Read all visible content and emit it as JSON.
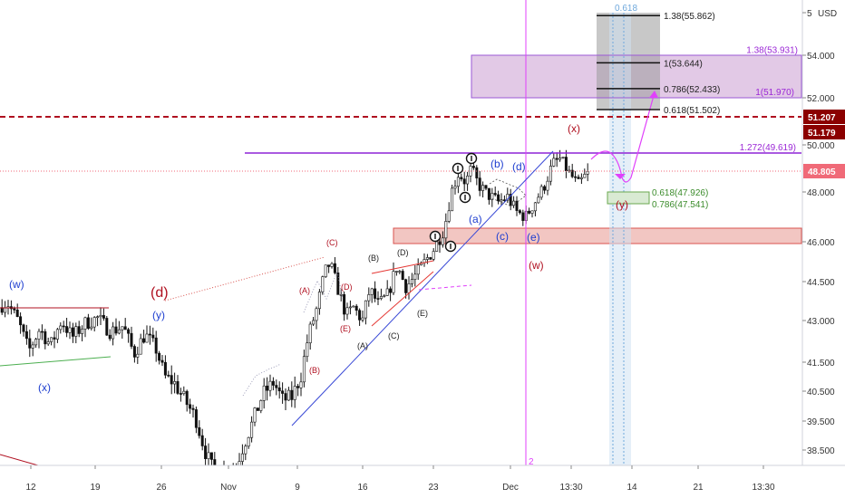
{
  "chart_data": {
    "type": "candlestick",
    "currency": "USD",
    "y_axis_labels": [
      "5",
      "54.000",
      "52.000",
      "50.000",
      "48.000",
      "46.000",
      "44.500",
      "43.000",
      "41.500",
      "40.500",
      "39.500",
      "38.500"
    ],
    "x_axis_labels": [
      "12",
      "19",
      "26",
      "Nov",
      "9",
      "16",
      "23",
      "Dec",
      "13:30",
      "14",
      "21",
      "13:30"
    ],
    "price_tags": [
      {
        "label": "51.207",
        "value": 51.207,
        "color": "#8b0000"
      },
      {
        "label": "51.179",
        "value": 51.179,
        "color": "#8b0000"
      },
      {
        "label": "48.805",
        "value": 48.805,
        "color": "#f06a78"
      }
    ],
    "fib_levels": [
      {
        "label": "1.38(55.862)",
        "value": 55.862
      },
      {
        "label": "1(53.644)",
        "value": 53.644
      },
      {
        "label": "0.786(52.433)",
        "value": 52.433
      },
      {
        "label": "0.618(51.502)",
        "value": 51.502
      }
    ],
    "purple_levels": [
      {
        "label": "1.38(53.931)",
        "value": 53.931
      },
      {
        "label": "1(51.970)",
        "value": 51.97
      },
      {
        "label": "1.272(49.619)",
        "value": 49.619
      }
    ],
    "green_levels": [
      {
        "label": "0.618(47.926)",
        "value": 47.926
      },
      {
        "label": "0.786(47.541)",
        "value": 47.541
      }
    ],
    "wave_labels": [
      {
        "text": "(w)",
        "color": "#1f3fd0"
      },
      {
        "text": "(x)",
        "color": "#1f3fd0"
      },
      {
        "text": "(y)",
        "color": "#1f3fd0"
      },
      {
        "text": "(d)",
        "color": "#b01020"
      },
      {
        "text": "(A)",
        "color": "#b01020"
      },
      {
        "text": "(B)",
        "color": "#b01020"
      },
      {
        "text": "(C)",
        "color": "#b01020"
      },
      {
        "text": "(D)",
        "color": "#b01020"
      },
      {
        "text": "(E)",
        "color": "#b01020"
      },
      {
        "text": "(A)",
        "color": "#222222"
      },
      {
        "text": "(B)",
        "color": "#222222"
      },
      {
        "text": "(C)",
        "color": "#222222"
      },
      {
        "text": "(D)",
        "color": "#222222"
      },
      {
        "text": "(E)",
        "color": "#222222"
      },
      {
        "text": "(a)",
        "color": "#1f3fd0"
      },
      {
        "text": "(b)",
        "color": "#1f3fd0"
      },
      {
        "text": "(c)",
        "color": "#1f3fd0"
      },
      {
        "text": "(d)",
        "color": "#1f3fd0"
      },
      {
        "text": "(e)",
        "color": "#1f3fd0"
      },
      {
        "text": "(w)",
        "color": "#b01020"
      },
      {
        "text": "(x)",
        "color": "#b01020"
      },
      {
        "text": "(y)",
        "color": "#b01020"
      }
    ],
    "top_marker_label": "0.618",
    "vertical_line_label": "2"
  }
}
